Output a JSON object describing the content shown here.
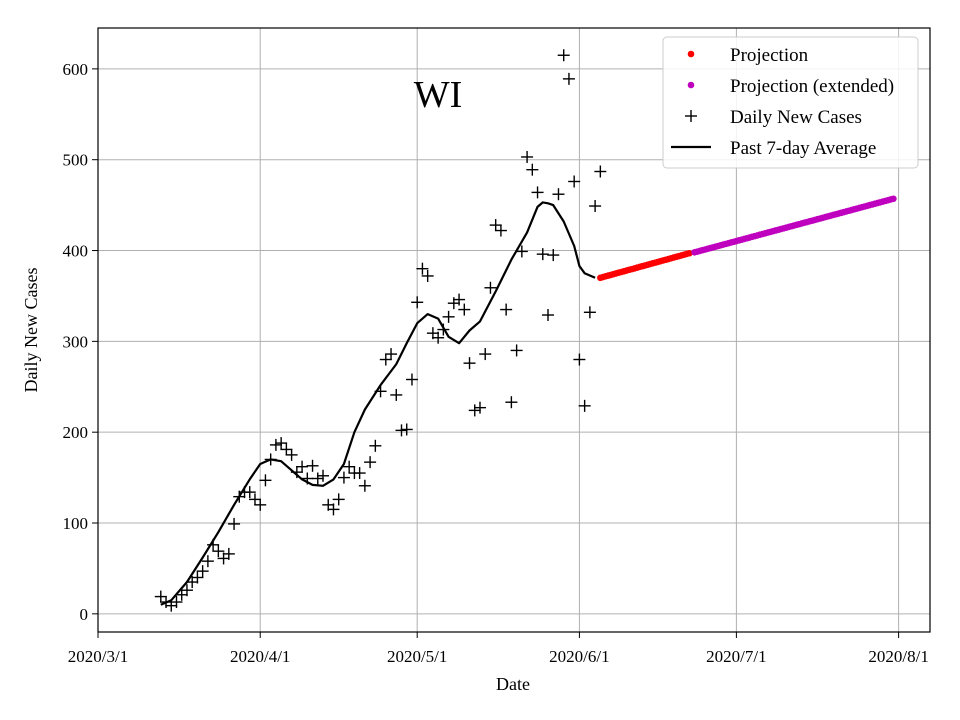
{
  "chart_data": {
    "type": "scatter",
    "title": "WI",
    "xlabel": "Date",
    "ylabel": "Daily New Cases",
    "x_ticks": [
      "2020/3/1",
      "2020/4/1",
      "2020/5/1",
      "2020/6/1",
      "2020/7/1",
      "2020/8/1"
    ],
    "y_ticks": [
      "0",
      "100",
      "200",
      "300",
      "400",
      "500",
      "600"
    ],
    "xlim": [
      "2020-03-01",
      "2020-08-07"
    ],
    "ylim": [
      -20,
      645
    ],
    "grid": true,
    "legend_position": "top-right",
    "series": [
      {
        "name": "Projection",
        "kind": "dots",
        "color": "#ff0000",
        "x_start": "2020-06-05",
        "x_end": "2020-06-22",
        "y_start": 370,
        "y_end": 397
      },
      {
        "name": "Projection (extended)",
        "kind": "dots",
        "color": "#bf00bf",
        "x_start": "2020-06-23",
        "x_end": "2020-07-31",
        "y_start": 398,
        "y_end": 457
      },
      {
        "name": "Daily New Cases",
        "kind": "plus",
        "color": "#000000",
        "x_start": "2020-03-13",
        "values": [
          19,
          13,
          9,
          13,
          21,
          26,
          35,
          40,
          47,
          58,
          76,
          69,
          61,
          66,
          99,
          129,
          134,
          134,
          126,
          120,
          147,
          170,
          186,
          188,
          181,
          175,
          156,
          162,
          149,
          163,
          149,
          152,
          120,
          115,
          126,
          150,
          162,
          155,
          155,
          141,
          167,
          185,
          245,
          280,
          286,
          241,
          202,
          203,
          258,
          343,
          380,
          372,
          309,
          304,
          313,
          327,
          342,
          346,
          335,
          276,
          224,
          227,
          286,
          359,
          428,
          422,
          335,
          233,
          290,
          399,
          503,
          489,
          464,
          396,
          329,
          395,
          462,
          615,
          589,
          476,
          280,
          229,
          332,
          449,
          487
        ]
      },
      {
        "name": "Past 7-day Average",
        "kind": "line",
        "color": "#000000",
        "x": [
          "2020-03-13",
          "2020-03-15",
          "2020-03-18",
          "2020-03-21",
          "2020-03-24",
          "2020-03-27",
          "2020-03-30",
          "2020-04-01",
          "2020-04-03",
          "2020-04-05",
          "2020-04-07",
          "2020-04-09",
          "2020-04-11",
          "2020-04-13",
          "2020-04-15",
          "2020-04-17",
          "2020-04-19",
          "2020-04-21",
          "2020-04-24",
          "2020-04-27",
          "2020-04-29",
          "2020-05-01",
          "2020-05-03",
          "2020-05-05",
          "2020-05-07",
          "2020-05-09",
          "2020-05-11",
          "2020-05-13",
          "2020-05-16",
          "2020-05-19",
          "2020-05-22",
          "2020-05-24",
          "2020-05-25",
          "2020-05-26",
          "2020-05-27",
          "2020-05-29",
          "2020-05-31",
          "2020-06-01",
          "2020-06-02",
          "2020-06-04"
        ],
        "y": [
          10,
          15,
          35,
          62,
          90,
          120,
          148,
          165,
          170,
          168,
          158,
          148,
          142,
          141,
          148,
          165,
          200,
          225,
          252,
          275,
          298,
          320,
          330,
          325,
          305,
          298,
          312,
          322,
          355,
          390,
          420,
          448,
          453,
          452,
          450,
          432,
          405,
          383,
          375,
          370
        ]
      }
    ]
  }
}
